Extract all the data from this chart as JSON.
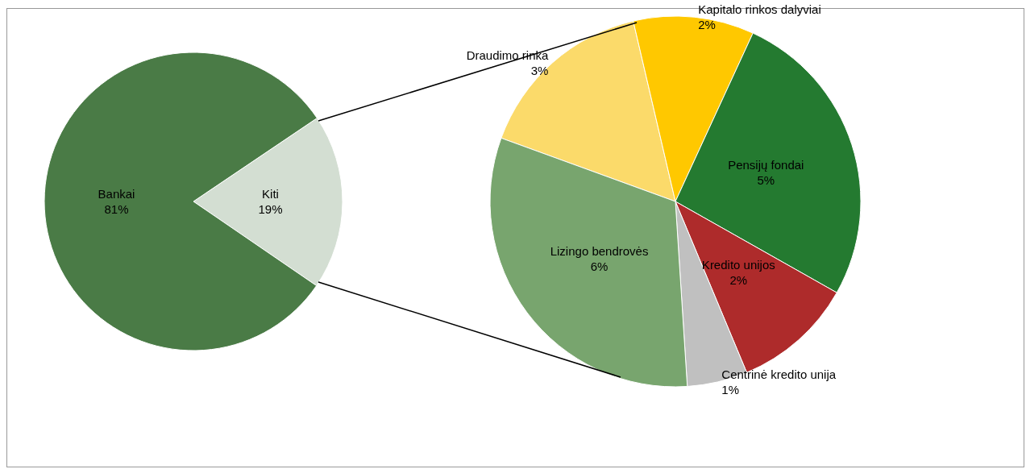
{
  "chart_data": [
    {
      "type": "pie",
      "categories": [
        "Kiti",
        "Bankai"
      ],
      "values": [
        19,
        81
      ],
      "colors": [
        "#d3ded2",
        "#4a7b46"
      ],
      "value_labels": [
        "19%",
        "81%"
      ]
    },
    {
      "type": "pie",
      "categories": [
        "Draudimo rinka",
        "Kapitalo rinkos dalyviai",
        "Pensijų fondai",
        "Kredito unijos",
        "Centrinė kredito unija",
        "Lizingo bendrovės"
      ],
      "values": [
        3,
        2,
        5,
        2,
        1,
        6
      ],
      "colors": [
        "#fbda6a",
        "#ffc800",
        "#247a30",
        "#ae2b2b",
        "#c0c0c0",
        "#78a56e"
      ],
      "value_labels": [
        "3%",
        "2%",
        "5%",
        "2%",
        "1%",
        "6%"
      ]
    }
  ]
}
